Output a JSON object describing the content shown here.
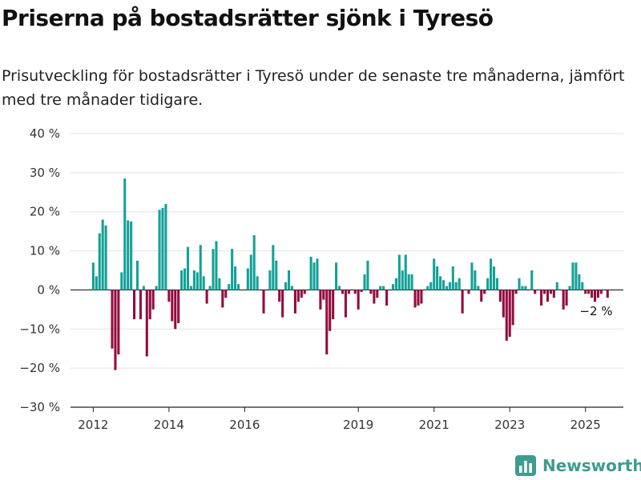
{
  "header": {
    "title": "Priserna på bostadsrätter sjönk i Tyresö",
    "subtitle": "Prisutveckling för bostadsrätter i Tyresö under de senaste tre månaderna, jämfört med tre månader tidigare."
  },
  "brand": {
    "name": "Newsworthy"
  },
  "colors": {
    "positive": "#13a199",
    "negative": "#930c3f",
    "grid": "#e3e3e3",
    "axis": "#222222",
    "brand": "#3f9b8f"
  },
  "chart_data": {
    "type": "bar",
    "ylim": [
      -30,
      40
    ],
    "yticks": [
      -30,
      -20,
      -10,
      0,
      10,
      20,
      30,
      40
    ],
    "ytick_labels": [
      "−30 %",
      "−20 %",
      "−10 %",
      "0 %",
      "10 %",
      "20 %",
      "30 %",
      "40 %"
    ],
    "xticks": [
      2012,
      2014,
      2016,
      2019,
      2021,
      2023,
      2025
    ],
    "x_start": 2012.0,
    "x_step": 0.08333,
    "x_domain": [
      2011.4,
      2026.0
    ],
    "annotation": {
      "label": "−2 %",
      "value": -2
    },
    "grid": true,
    "values": [
      7,
      3.5,
      14.5,
      18,
      16.5,
      0,
      -15,
      -20.5,
      -16.5,
      4.5,
      28.5,
      17.8,
      17.5,
      -7.5,
      7.5,
      -7.5,
      1,
      -17,
      -7.5,
      -5,
      1,
      20.5,
      21,
      22,
      -3,
      -8,
      -10,
      -8.5,
      5,
      5.5,
      11,
      1,
      5,
      4.5,
      11.5,
      3.5,
      -3.5,
      1,
      10.5,
      12.5,
      3,
      -4.5,
      -2,
      1.5,
      10.5,
      6,
      1.5,
      0,
      0,
      5.5,
      9,
      14,
      3.5,
      0,
      -6,
      0,
      5,
      11.5,
      7.5,
      -3,
      -7,
      2,
      5,
      1,
      -6,
      -3,
      -2,
      -1,
      0,
      8.5,
      7,
      8,
      -5,
      -2.5,
      -16.5,
      -10.5,
      -7.5,
      7,
      1,
      -1,
      -7,
      -1,
      0,
      -1,
      -5,
      -0.5,
      4,
      7.5,
      -1,
      -3.5,
      -2,
      1,
      1,
      -4,
      0,
      1.5,
      3,
      9,
      5,
      9,
      4,
      4,
      -4.5,
      -4,
      -3.5,
      0,
      1,
      2,
      8,
      6,
      3.5,
      2.5,
      1,
      2,
      6,
      2,
      3,
      -6,
      0,
      -1,
      7,
      5,
      1,
      -3,
      -1,
      3,
      8,
      6,
      3,
      -3,
      -7,
      -13,
      -12,
      -9,
      -1,
      3,
      1,
      1,
      0,
      5,
      -1,
      0,
      -4,
      -1,
      -3,
      -1,
      -2,
      2,
      0,
      -5,
      -4,
      1,
      7,
      7,
      4,
      2,
      -1,
      -1,
      -2,
      -3,
      -2,
      -1,
      0,
      -2
    ]
  }
}
